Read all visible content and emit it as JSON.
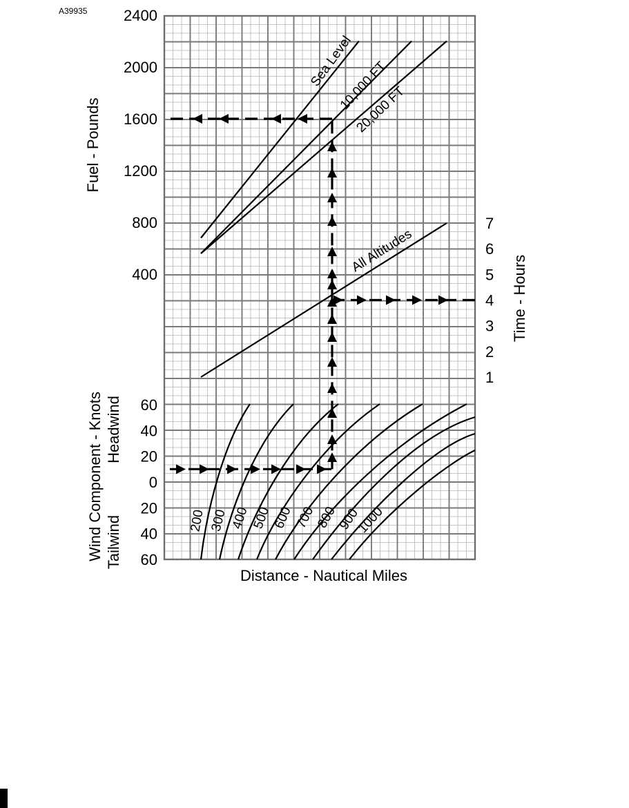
{
  "figure_id": "A39935",
  "chart_data": {
    "type": "line",
    "fuel_panel": {
      "ylabel": "Fuel - Pounds",
      "y_ticks": [
        "2400",
        "2000",
        "1600",
        "1200",
        "800",
        "400"
      ],
      "ylim": [
        0,
        2400
      ],
      "series": [
        {
          "name": "Sea Level",
          "x": [
            150,
            600
          ],
          "y": [
            680,
            2200
          ]
        },
        {
          "name": "10,000 FT",
          "x": [
            150,
            750
          ],
          "y": [
            560,
            2200
          ]
        },
        {
          "name": "20,000 FT",
          "x": [
            150,
            850
          ],
          "y": [
            560,
            2200
          ]
        }
      ]
    },
    "time_panel": {
      "ylabel": "Time - Hours",
      "y_ticks": [
        "7",
        "6",
        "5",
        "4",
        "3",
        "2",
        "1"
      ],
      "ylim": [
        1,
        7
      ],
      "series": [
        {
          "name": "All Altitudes",
          "x": [
            150,
            850
          ],
          "y": [
            1,
            7
          ]
        }
      ]
    },
    "wind_panel": {
      "ylabel": "Wind Component - Knots",
      "headwind_label": "Headwind",
      "tailwind_label": "Tailwind",
      "y_ticks": [
        "60",
        "40",
        "20",
        "0",
        "20",
        "40",
        "60"
      ],
      "ylim": [
        -60,
        60
      ],
      "curve_labels": [
        "200",
        "300",
        "400",
        "500",
        "600",
        "700",
        "800",
        "900",
        "1000"
      ]
    },
    "xlabel": "Distance - Nautical Miles",
    "grid": true,
    "example": {
      "wind_knots": 10,
      "direction": "Headwind",
      "fuel_pounds": 1600,
      "time_hours": 4
    }
  }
}
